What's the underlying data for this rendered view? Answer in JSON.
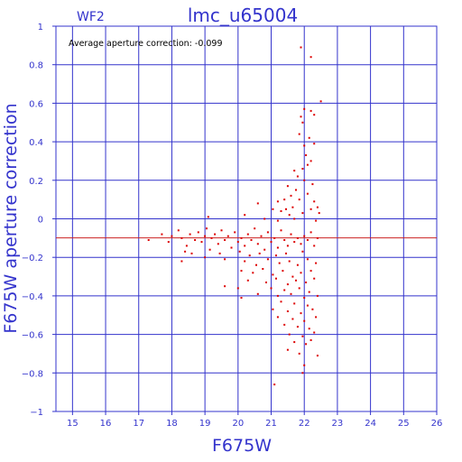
{
  "header": {
    "chip_label": "WF2",
    "plot_title": "lmc_u65004"
  },
  "annotation": "Average aperture correction:  -0.099",
  "colors": {
    "axis": "#3333cc",
    "grid": "#3333cc",
    "points": "#dd0000",
    "mean_line": "#cc2222",
    "annotation_text": "#000000"
  },
  "chart_data": {
    "type": "scatter",
    "title": "lmc_u65004",
    "subtitle": "WF2",
    "xlabel": "F675W",
    "ylabel": "F675W aperture correction",
    "xlim": [
      14.5,
      26
    ],
    "ylim": [
      -1,
      1
    ],
    "xticks": [
      15,
      16,
      17,
      18,
      19,
      20,
      21,
      22,
      23,
      24,
      25,
      26
    ],
    "yticks": [
      1,
      0.8,
      0.6,
      0.4,
      0.2,
      0,
      -0.2,
      -0.4,
      -0.6,
      -0.8,
      -1
    ],
    "ytick_labels": [
      "1",
      "0.8",
      "0.6",
      "0.4",
      "0.2",
      "0",
      "−0.2",
      "−0.4",
      "−0.6",
      "−0.8",
      "−1"
    ],
    "grid": true,
    "mean_line_y": -0.099,
    "series": [
      {
        "points": [
          [
            21.9,
            0.89
          ],
          [
            22.2,
            0.84
          ],
          [
            22.5,
            0.61
          ],
          [
            22.0,
            0.57
          ],
          [
            22.2,
            0.56
          ],
          [
            21.9,
            0.53
          ],
          [
            21.95,
            0.5
          ],
          [
            22.3,
            0.54
          ],
          [
            21.85,
            0.44
          ],
          [
            22.15,
            0.42
          ],
          [
            22.0,
            0.38
          ],
          [
            22.3,
            0.39
          ],
          [
            22.05,
            0.33
          ],
          [
            22.2,
            0.3
          ],
          [
            21.7,
            0.25
          ],
          [
            21.95,
            0.26
          ],
          [
            22.1,
            0.28
          ],
          [
            21.8,
            0.22
          ],
          [
            22.25,
            0.18
          ],
          [
            21.5,
            0.17
          ],
          [
            21.75,
            0.15
          ],
          [
            22.0,
            0.2
          ],
          [
            21.4,
            0.1
          ],
          [
            21.6,
            0.12
          ],
          [
            22.1,
            0.13
          ],
          [
            21.2,
            0.09
          ],
          [
            21.85,
            0.1
          ],
          [
            22.3,
            0.09
          ],
          [
            21.45,
            0.05
          ],
          [
            21.65,
            0.06
          ],
          [
            22.2,
            0.05
          ],
          [
            20.6,
            0.08
          ],
          [
            21.05,
            0.05
          ],
          [
            21.3,
            0.04
          ],
          [
            22.4,
            0.06
          ],
          [
            20.2,
            0.02
          ],
          [
            21.55,
            0.02
          ],
          [
            21.95,
            0.03
          ],
          [
            22.45,
            0.03
          ],
          [
            19.1,
            0.01
          ],
          [
            20.8,
            0.0
          ],
          [
            21.2,
            -0.01
          ],
          [
            21.7,
            0.0
          ],
          [
            22.35,
            -0.01
          ],
          [
            17.3,
            -0.11
          ],
          [
            17.7,
            -0.08
          ],
          [
            17.9,
            -0.12
          ],
          [
            18.0,
            -0.09
          ],
          [
            18.2,
            -0.06
          ],
          [
            18.3,
            -0.1
          ],
          [
            18.45,
            -0.14
          ],
          [
            18.55,
            -0.08
          ],
          [
            18.7,
            -0.11
          ],
          [
            18.8,
            -0.07
          ],
          [
            18.9,
            -0.12
          ],
          [
            19.0,
            -0.09
          ],
          [
            19.05,
            -0.05
          ],
          [
            19.2,
            -0.1
          ],
          [
            19.3,
            -0.08
          ],
          [
            19.4,
            -0.13
          ],
          [
            19.5,
            -0.06
          ],
          [
            19.6,
            -0.11
          ],
          [
            19.7,
            -0.09
          ],
          [
            19.8,
            -0.15
          ],
          [
            19.9,
            -0.07
          ],
          [
            20.0,
            -0.12
          ],
          [
            20.1,
            -0.1
          ],
          [
            20.2,
            -0.14
          ],
          [
            20.3,
            -0.08
          ],
          [
            20.4,
            -0.11
          ],
          [
            20.5,
            -0.05
          ],
          [
            20.6,
            -0.13
          ],
          [
            20.7,
            -0.09
          ],
          [
            20.8,
            -0.16
          ],
          [
            20.9,
            -0.07
          ],
          [
            21.0,
            -0.12
          ],
          [
            21.1,
            -0.1
          ],
          [
            21.2,
            -0.15
          ],
          [
            21.3,
            -0.06
          ],
          [
            21.4,
            -0.11
          ],
          [
            21.5,
            -0.14
          ],
          [
            21.6,
            -0.08
          ],
          [
            21.7,
            -0.12
          ],
          [
            21.8,
            -0.1
          ],
          [
            21.9,
            -0.13
          ],
          [
            22.0,
            -0.09
          ],
          [
            22.1,
            -0.11
          ],
          [
            22.2,
            -0.07
          ],
          [
            22.3,
            -0.14
          ],
          [
            22.4,
            -0.1
          ],
          [
            18.4,
            -0.17
          ],
          [
            18.6,
            -0.18
          ],
          [
            19.15,
            -0.16
          ],
          [
            19.45,
            -0.18
          ],
          [
            20.05,
            -0.17
          ],
          [
            20.35,
            -0.19
          ],
          [
            20.65,
            -0.18
          ],
          [
            21.15,
            -0.19
          ],
          [
            21.45,
            -0.18
          ],
          [
            21.95,
            -0.17
          ],
          [
            18.3,
            -0.22
          ],
          [
            19.0,
            -0.2
          ],
          [
            19.6,
            -0.21
          ],
          [
            20.2,
            -0.22
          ],
          [
            20.55,
            -0.24
          ],
          [
            20.9,
            -0.21
          ],
          [
            21.25,
            -0.23
          ],
          [
            21.55,
            -0.22
          ],
          [
            21.8,
            -0.24
          ],
          [
            22.1,
            -0.21
          ],
          [
            22.35,
            -0.23
          ],
          [
            20.1,
            -0.27
          ],
          [
            20.45,
            -0.28
          ],
          [
            20.75,
            -0.26
          ],
          [
            21.05,
            -0.29
          ],
          [
            21.35,
            -0.27
          ],
          [
            21.65,
            -0.3
          ],
          [
            21.9,
            -0.28
          ],
          [
            22.2,
            -0.27
          ],
          [
            20.3,
            -0.32
          ],
          [
            20.85,
            -0.33
          ],
          [
            21.15,
            -0.31
          ],
          [
            21.5,
            -0.34
          ],
          [
            21.75,
            -0.32
          ],
          [
            22.05,
            -0.33
          ],
          [
            22.3,
            -0.31
          ],
          [
            19.6,
            -0.35
          ],
          [
            20.0,
            -0.36
          ],
          [
            21.0,
            -0.36
          ],
          [
            21.4,
            -0.37
          ],
          [
            21.85,
            -0.36
          ],
          [
            22.15,
            -0.38
          ],
          [
            20.6,
            -0.39
          ],
          [
            21.2,
            -0.4
          ],
          [
            21.6,
            -0.39
          ],
          [
            22.0,
            -0.41
          ],
          [
            22.4,
            -0.4
          ],
          [
            20.1,
            -0.41
          ],
          [
            21.3,
            -0.43
          ],
          [
            21.7,
            -0.44
          ],
          [
            22.1,
            -0.45
          ],
          [
            21.05,
            -0.47
          ],
          [
            21.5,
            -0.48
          ],
          [
            21.9,
            -0.49
          ],
          [
            22.25,
            -0.47
          ],
          [
            21.2,
            -0.51
          ],
          [
            21.65,
            -0.52
          ],
          [
            22.0,
            -0.53
          ],
          [
            22.35,
            -0.51
          ],
          [
            21.4,
            -0.55
          ],
          [
            21.8,
            -0.56
          ],
          [
            22.15,
            -0.57
          ],
          [
            21.55,
            -0.6
          ],
          [
            21.95,
            -0.61
          ],
          [
            22.3,
            -0.59
          ],
          [
            21.7,
            -0.64
          ],
          [
            22.05,
            -0.65
          ],
          [
            22.2,
            -0.63
          ],
          [
            21.5,
            -0.68
          ],
          [
            21.85,
            -0.7
          ],
          [
            22.4,
            -0.71
          ],
          [
            22.0,
            -0.76
          ],
          [
            21.95,
            -0.8
          ],
          [
            21.1,
            -0.86
          ]
        ]
      }
    ]
  }
}
